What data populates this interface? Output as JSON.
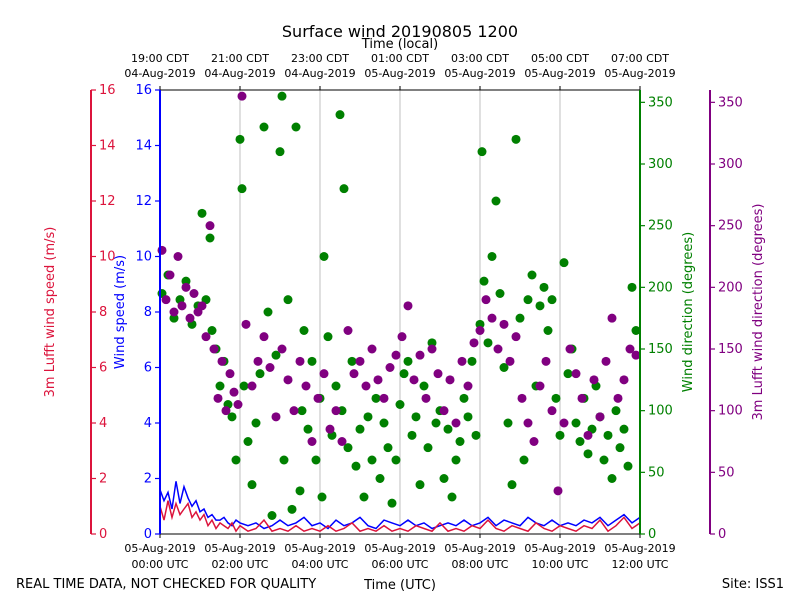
{
  "chart_data": {
    "type": "scatter",
    "title": "Surface wind 20190805 1200",
    "top_axis_label": "Time (local)",
    "xlabel": "Time (UTC)",
    "footer_left": "REAL TIME DATA, NOT CHECKED FOR QUALITY",
    "footer_right": "Site: ISS1",
    "x_unit": "hours since 05-Aug-2019 00:00 UTC",
    "xlim": [
      0,
      12
    ],
    "grid": "vertical lines at top-axis ticks",
    "bottom_ticks": [
      {
        "x": 0,
        "l1": "05-Aug-2019",
        "l2": "00:00 UTC"
      },
      {
        "x": 2,
        "l1": "05-Aug-2019",
        "l2": "02:00 UTC"
      },
      {
        "x": 4,
        "l1": "05-Aug-2019",
        "l2": "04:00 UTC"
      },
      {
        "x": 6,
        "l1": "05-Aug-2019",
        "l2": "06:00 UTC"
      },
      {
        "x": 8,
        "l1": "05-Aug-2019",
        "l2": "08:00 UTC"
      },
      {
        "x": 10,
        "l1": "05-Aug-2019",
        "l2": "10:00 UTC"
      },
      {
        "x": 12,
        "l1": "05-Aug-2019",
        "l2": "12:00 UTC"
      }
    ],
    "top_ticks": [
      {
        "x": 0,
        "l1": "19:00 CDT",
        "l2": "04-Aug-2019"
      },
      {
        "x": 2,
        "l1": "21:00 CDT",
        "l2": "04-Aug-2019"
      },
      {
        "x": 4,
        "l1": "23:00 CDT",
        "l2": "04-Aug-2019"
      },
      {
        "x": 6,
        "l1": "01:00 CDT",
        "l2": "05-Aug-2019"
      },
      {
        "x": 8,
        "l1": "03:00 CDT",
        "l2": "05-Aug-2019"
      },
      {
        "x": 10,
        "l1": "05:00 CDT",
        "l2": "05-Aug-2019"
      },
      {
        "x": 12,
        "l1": "07:00 CDT",
        "l2": "05-Aug-2019"
      }
    ],
    "axes": {
      "lufft_speed": {
        "label": "3m Lufft wind speed (m/s)",
        "color": "#dc143c",
        "ylim": [
          0,
          16
        ],
        "ticks": [
          0,
          2,
          4,
          6,
          8,
          10,
          12,
          14,
          16
        ]
      },
      "wind_speed": {
        "label": "Wind speed (m/s)",
        "color": "#0000ff",
        "ylim": [
          0,
          16
        ],
        "ticks": [
          0,
          2,
          4,
          6,
          8,
          10,
          12,
          14,
          16
        ]
      },
      "wind_dir": {
        "label": "Wind direction (degrees)",
        "color": "#008000",
        "ylim": [
          0,
          360
        ],
        "ticks": [
          0,
          50,
          100,
          150,
          200,
          250,
          300,
          350
        ]
      },
      "lufft_dir": {
        "label": "3m Lufft wind direction (degrees)",
        "color": "#800080",
        "ylim": [
          0,
          360
        ],
        "ticks": [
          0,
          50,
          100,
          150,
          200,
          250,
          300,
          350
        ]
      }
    },
    "series": [
      {
        "key": "wind_speed",
        "style": "line",
        "color": "#0000ff",
        "x": [
          0,
          0.1,
          0.2,
          0.3,
          0.4,
          0.5,
          0.6,
          0.7,
          0.8,
          0.9,
          1.0,
          1.1,
          1.2,
          1.3,
          1.4,
          1.5,
          1.6,
          1.7,
          1.8,
          1.9,
          2.0,
          2.2,
          2.4,
          2.6,
          2.8,
          3.0,
          3.2,
          3.4,
          3.6,
          3.8,
          4.0,
          4.2,
          4.4,
          4.6,
          4.8,
          5.0,
          5.2,
          5.4,
          5.6,
          5.8,
          6.0,
          6.2,
          6.4,
          6.6,
          6.8,
          7.0,
          7.2,
          7.4,
          7.6,
          7.8,
          8.0,
          8.2,
          8.4,
          8.6,
          8.8,
          9.0,
          9.2,
          9.4,
          9.6,
          9.8,
          10.0,
          10.2,
          10.4,
          10.6,
          10.8,
          11.0,
          11.2,
          11.4,
          11.6,
          11.8,
          12.0
        ],
        "y": [
          1.6,
          1.2,
          1.5,
          0.9,
          1.9,
          1.1,
          1.7,
          1.3,
          1.0,
          1.2,
          0.8,
          0.9,
          0.6,
          0.7,
          0.5,
          0.5,
          0.6,
          0.4,
          0.3,
          0.5,
          0.4,
          0.3,
          0.4,
          0.2,
          0.3,
          0.5,
          0.3,
          0.4,
          0.6,
          0.3,
          0.4,
          0.2,
          0.5,
          0.3,
          0.4,
          0.6,
          0.3,
          0.2,
          0.5,
          0.4,
          0.3,
          0.5,
          0.3,
          0.4,
          0.2,
          0.3,
          0.4,
          0.3,
          0.5,
          0.3,
          0.4,
          0.6,
          0.3,
          0.5,
          0.4,
          0.3,
          0.6,
          0.4,
          0.3,
          0.5,
          0.3,
          0.4,
          0.3,
          0.5,
          0.4,
          0.6,
          0.3,
          0.5,
          0.7,
          0.4,
          0.6
        ]
      },
      {
        "key": "lufft_speed",
        "style": "line",
        "color": "#dc143c",
        "x": [
          0,
          0.1,
          0.2,
          0.3,
          0.4,
          0.5,
          0.6,
          0.7,
          0.8,
          0.9,
          1.0,
          1.1,
          1.2,
          1.3,
          1.4,
          1.5,
          1.6,
          1.7,
          1.8,
          1.9,
          2.0,
          2.2,
          2.4,
          2.6,
          2.8,
          3.0,
          3.2,
          3.4,
          3.6,
          3.8,
          4.0,
          4.2,
          4.4,
          4.6,
          4.8,
          5.0,
          5.2,
          5.4,
          5.6,
          5.8,
          6.0,
          6.2,
          6.4,
          6.6,
          6.8,
          7.0,
          7.2,
          7.4,
          7.6,
          7.8,
          8.0,
          8.2,
          8.4,
          8.6,
          8.8,
          9.0,
          9.2,
          9.4,
          9.6,
          9.8,
          10.0,
          10.2,
          10.4,
          10.6,
          10.8,
          11.0,
          11.2,
          11.4,
          11.6,
          11.8,
          12.0
        ],
        "y": [
          1.0,
          0.5,
          1.2,
          0.6,
          1.1,
          0.7,
          0.9,
          1.1,
          0.6,
          0.8,
          0.5,
          0.7,
          0.3,
          0.5,
          0.2,
          0.4,
          0.3,
          0.2,
          0.4,
          0.1,
          0.3,
          0.1,
          0.2,
          0.5,
          0.1,
          0.2,
          0.1,
          0.3,
          0.1,
          0.2,
          0.1,
          0.3,
          0.1,
          0.2,
          0.4,
          0.1,
          0.2,
          0.1,
          0.3,
          0.1,
          0.2,
          0.1,
          0.3,
          0.2,
          0.1,
          0.4,
          0.1,
          0.2,
          0.1,
          0.3,
          0.2,
          0.5,
          0.2,
          0.1,
          0.3,
          0.2,
          0.1,
          0.4,
          0.2,
          0.1,
          0.3,
          0.2,
          0.1,
          0.3,
          0.2,
          0.5,
          0.1,
          0.3,
          0.6,
          0.2,
          0.4
        ]
      },
      {
        "key": "wind_dir",
        "style": "points",
        "color": "#008000",
        "x": [
          0.05,
          0.2,
          0.35,
          0.5,
          0.65,
          0.8,
          0.95,
          1.05,
          1.15,
          1.25,
          1.3,
          1.4,
          1.5,
          1.6,
          1.7,
          1.8,
          1.9,
          2.0,
          2.05,
          2.1,
          2.2,
          2.3,
          2.4,
          2.5,
          2.6,
          2.7,
          2.8,
          2.9,
          3.0,
          3.05,
          3.1,
          3.2,
          3.3,
          3.4,
          3.5,
          3.55,
          3.6,
          3.7,
          3.8,
          3.9,
          4.0,
          4.05,
          4.1,
          4.2,
          4.3,
          4.4,
          4.5,
          4.55,
          4.6,
          4.7,
          4.8,
          4.9,
          5.0,
          5.1,
          5.2,
          5.3,
          5.4,
          5.5,
          5.6,
          5.7,
          5.8,
          5.9,
          6.0,
          6.1,
          6.2,
          6.3,
          6.4,
          6.5,
          6.6,
          6.7,
          6.8,
          6.9,
          7.0,
          7.1,
          7.2,
          7.3,
          7.4,
          7.5,
          7.6,
          7.7,
          7.8,
          7.9,
          8.0,
          8.05,
          8.1,
          8.2,
          8.3,
          8.4,
          8.5,
          8.6,
          8.7,
          8.8,
          8.9,
          9.0,
          9.1,
          9.2,
          9.3,
          9.4,
          9.5,
          9.6,
          9.7,
          9.8,
          9.9,
          10.0,
          10.1,
          10.2,
          10.3,
          10.4,
          10.5,
          10.6,
          10.7,
          10.8,
          10.9,
          11.0,
          11.1,
          11.2,
          11.3,
          11.4,
          11.5,
          11.6,
          11.7,
          11.8,
          11.9
        ],
        "y": [
          195,
          210,
          175,
          190,
          205,
          170,
          185,
          260,
          190,
          240,
          165,
          150,
          120,
          140,
          105,
          95,
          60,
          320,
          280,
          120,
          75,
          40,
          90,
          130,
          330,
          180,
          15,
          145,
          310,
          355,
          60,
          190,
          20,
          330,
          35,
          100,
          165,
          85,
          140,
          60,
          110,
          30,
          225,
          160,
          80,
          120,
          340,
          100,
          280,
          70,
          140,
          55,
          85,
          30,
          95,
          60,
          110,
          45,
          90,
          70,
          25,
          60,
          105,
          130,
          140,
          80,
          95,
          40,
          120,
          70,
          155,
          90,
          100,
          45,
          85,
          30,
          60,
          75,
          110,
          95,
          140,
          80,
          170,
          310,
          205,
          155,
          225,
          270,
          195,
          135,
          90,
          40,
          320,
          175,
          60,
          190,
          210,
          120,
          185,
          200,
          165,
          190,
          110,
          80,
          220,
          130,
          150,
          90,
          75,
          110,
          65,
          85,
          120,
          95,
          60,
          80,
          45,
          100,
          70,
          85,
          55,
          200,
          165
        ]
      },
      {
        "key": "lufft_dir",
        "style": "points",
        "color": "#800080",
        "x": [
          0.05,
          0.15,
          0.25,
          0.35,
          0.45,
          0.55,
          0.65,
          0.75,
          0.85,
          0.95,
          1.05,
          1.15,
          1.25,
          1.35,
          1.45,
          1.55,
          1.65,
          1.75,
          1.85,
          1.95,
          2.05,
          2.15,
          2.3,
          2.45,
          2.6,
          2.75,
          2.9,
          3.05,
          3.2,
          3.35,
          3.5,
          3.65,
          3.8,
          3.95,
          4.1,
          4.25,
          4.4,
          4.55,
          4.7,
          4.85,
          5.0,
          5.15,
          5.3,
          5.45,
          5.6,
          5.75,
          5.9,
          6.05,
          6.2,
          6.35,
          6.5,
          6.65,
          6.8,
          6.95,
          7.1,
          7.25,
          7.4,
          7.55,
          7.7,
          7.85,
          8.0,
          8.15,
          8.3,
          8.45,
          8.6,
          8.75,
          8.9,
          9.05,
          9.2,
          9.35,
          9.5,
          9.65,
          9.8,
          9.95,
          10.1,
          10.25,
          10.4,
          10.55,
          10.7,
          10.85,
          11.0,
          11.15,
          11.3,
          11.45,
          11.6,
          11.75,
          11.9
        ],
        "y": [
          230,
          190,
          210,
          180,
          225,
          185,
          200,
          175,
          195,
          180,
          185,
          160,
          250,
          150,
          110,
          140,
          100,
          130,
          115,
          105,
          355,
          170,
          120,
          140,
          160,
          135,
          95,
          150,
          125,
          100,
          140,
          120,
          75,
          110,
          130,
          85,
          100,
          75,
          165,
          130,
          140,
          120,
          150,
          125,
          110,
          135,
          145,
          160,
          185,
          125,
          145,
          110,
          150,
          130,
          100,
          125,
          90,
          140,
          120,
          155,
          165,
          190,
          175,
          150,
          170,
          140,
          160,
          110,
          90,
          75,
          120,
          140,
          100,
          35,
          90,
          150,
          130,
          110,
          80,
          125,
          95,
          140,
          175,
          110,
          125,
          150,
          145
        ]
      }
    ]
  }
}
